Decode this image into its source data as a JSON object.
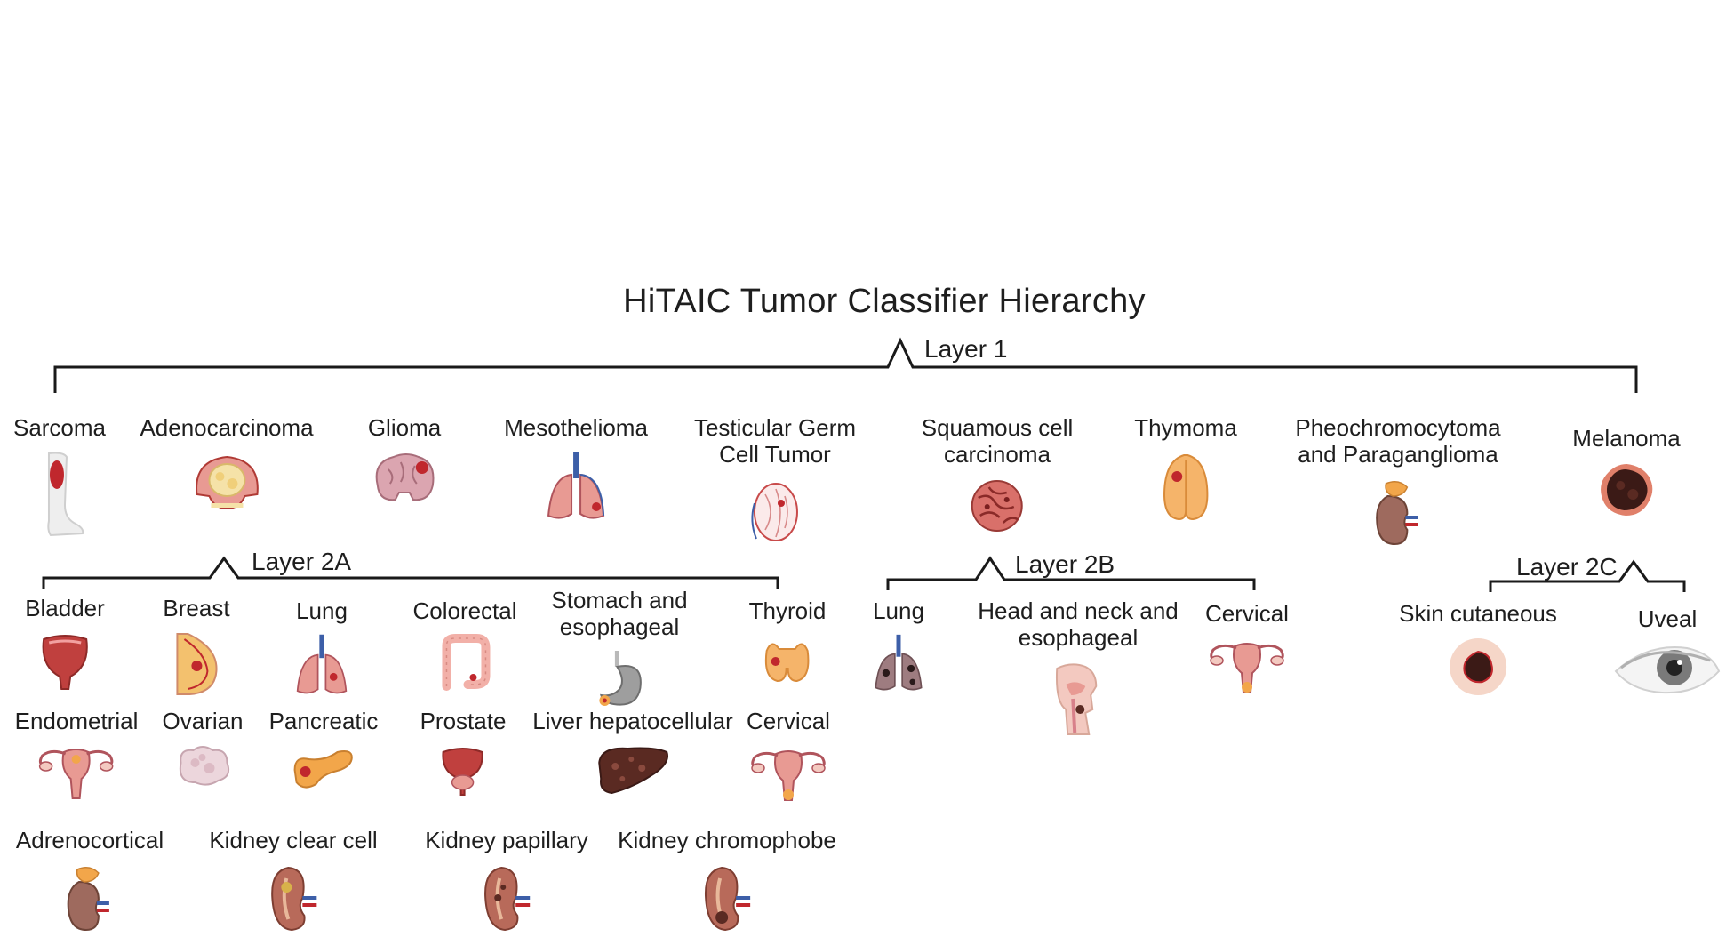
{
  "title": "HiTAIC Tumor Classifier Hierarchy",
  "colors": {
    "line": "#1a1a1a",
    "text": "#1e1e1e",
    "tissue": "#e89a93",
    "tumor": "#c0272d",
    "dark": "#3b1a16",
    "orange": "#f2a64a",
    "blue": "#3d5fa8"
  },
  "layer1": {
    "label": "Layer 1",
    "items": [
      {
        "label": "Sarcoma",
        "icon": "leg-icon"
      },
      {
        "label": "Adenocarcinoma",
        "icon": "breast-tissue-icon"
      },
      {
        "label": "Glioma",
        "icon": "brain-icon"
      },
      {
        "label": "Mesothelioma",
        "icon": "lungs-icon"
      },
      {
        "label": "Testicular Germ\nCell Tumor",
        "icon": "testis-icon"
      },
      {
        "label": "Squamous cell\ncarcinoma",
        "icon": "squamous-cell-icon"
      },
      {
        "label": "Thymoma",
        "icon": "thymus-icon"
      },
      {
        "label": "Pheochromocytoma\nand Paraganglioma",
        "icon": "adrenal-icon"
      },
      {
        "label": "Melanoma",
        "icon": "melanoma-icon"
      }
    ]
  },
  "layer2a": {
    "label": "Layer 2A",
    "items": [
      {
        "label": "Bladder",
        "icon": "bladder-icon"
      },
      {
        "label": "Breast",
        "icon": "breast-icon"
      },
      {
        "label": "Lung",
        "icon": "lungs-icon"
      },
      {
        "label": "Colorectal",
        "icon": "colon-icon"
      },
      {
        "label": "Stomach and\nesophageal",
        "icon": "stomach-icon"
      },
      {
        "label": "Thyroid",
        "icon": "thyroid-icon"
      },
      {
        "label": "Endometrial",
        "icon": "uterus-icon"
      },
      {
        "label": "Ovarian",
        "icon": "ovary-icon"
      },
      {
        "label": "Pancreatic",
        "icon": "pancreas-icon"
      },
      {
        "label": "Prostate",
        "icon": "prostate-icon"
      },
      {
        "label": "Liver hepatocellular",
        "icon": "liver-icon"
      },
      {
        "label": "Cervical",
        "icon": "uterus-icon"
      },
      {
        "label": "Adrenocortical",
        "icon": "adrenal-icon"
      },
      {
        "label": "Kidney clear cell",
        "icon": "kidney-icon"
      },
      {
        "label": "Kidney papillary",
        "icon": "kidney-icon"
      },
      {
        "label": "Kidney chromophobe",
        "icon": "kidney-icon"
      }
    ]
  },
  "layer2b": {
    "label": "Layer 2B",
    "items": [
      {
        "label": "Lung",
        "icon": "dark-lungs-icon"
      },
      {
        "label": "Head and neck and\nesophageal",
        "icon": "head-neck-icon"
      },
      {
        "label": "Cervical",
        "icon": "uterus-icon"
      }
    ]
  },
  "layer2c": {
    "label": "Layer 2C",
    "items": [
      {
        "label": "Skin cutaneous",
        "icon": "skin-lesion-icon"
      },
      {
        "label": "Uveal",
        "icon": "eye-icon"
      }
    ]
  }
}
